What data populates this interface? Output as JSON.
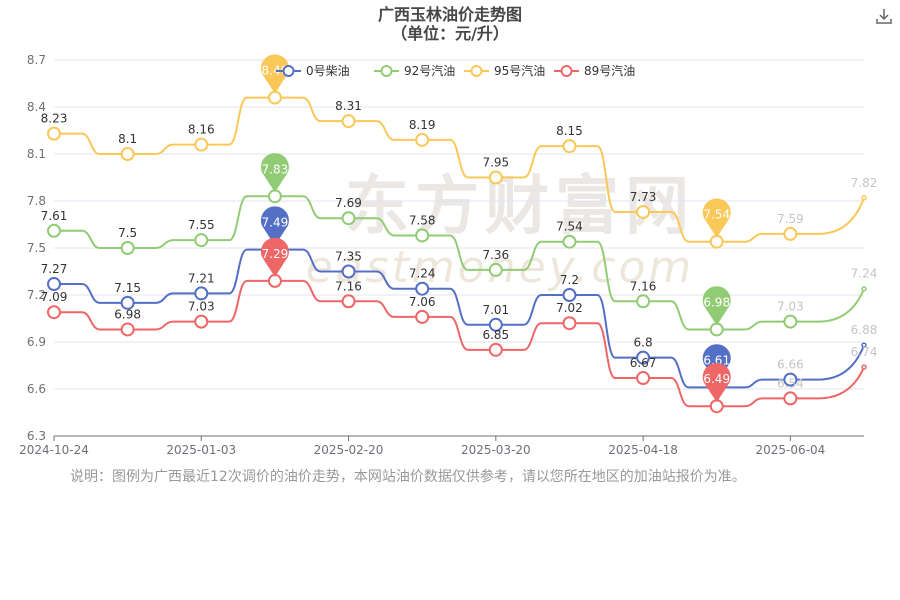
{
  "chart_data": {
    "type": "line",
    "title": "广西玉林油价走势图",
    "subtitle": "（单位：元/升）",
    "x": [
      "2024-10-24",
      "2024-11-21",
      "2025-01-03",
      "2025-01-17",
      "2025-02-20",
      "2025-03-06",
      "2025-03-20",
      "2025-04-03",
      "2025-04-18",
      "2025-05-07",
      "2025-06-04",
      "2025-06-20"
    ],
    "x_tick_labels": [
      "2024-10-24",
      "2025-01-03",
      "2025-02-20",
      "2025-03-20",
      "2025-04-18",
      "2025-06-04"
    ],
    "ylim": [
      6.3,
      8.7
    ],
    "y_ticks": [
      "6.3",
      "6.6",
      "6.9",
      "7.2",
      "7.5",
      "7.8",
      "8.1",
      "8.4",
      "8.7"
    ],
    "grid": true,
    "legend_position": "top",
    "series": [
      {
        "name": "0号柴油",
        "color": "#5470c6",
        "values": [
          7.27,
          7.15,
          7.21,
          7.49,
          7.35,
          7.24,
          7.01,
          7.2,
          6.8,
          6.61,
          6.66,
          6.88
        ],
        "max_label": "7.49",
        "min_label": "6.61"
      },
      {
        "name": "92号汽油",
        "color": "#91cc75",
        "values": [
          7.61,
          7.5,
          7.55,
          7.83,
          7.69,
          7.58,
          7.36,
          7.54,
          7.16,
          6.98,
          7.03,
          7.24
        ],
        "max_label": "7.83",
        "min_label": "6.98"
      },
      {
        "name": "95号汽油",
        "color": "#fac858",
        "values": [
          8.23,
          8.1,
          8.16,
          8.46,
          8.31,
          8.19,
          7.95,
          8.15,
          7.73,
          7.54,
          7.59,
          7.82
        ],
        "max_label": "8.46",
        "min_label": "7.54"
      },
      {
        "name": "89号汽油",
        "color": "#ee6666",
        "values": [
          7.09,
          6.98,
          7.03,
          7.29,
          7.16,
          7.06,
          6.85,
          7.02,
          6.67,
          6.49,
          6.54,
          6.74
        ],
        "max_label": "7.29",
        "min_label": "6.49"
      }
    ]
  },
  "watermark": {
    "cn": "东方财富网",
    "en": "eastmoney.com"
  },
  "note": "说明：图例为广西最近12次调价的油价走势，本网站油价数据仅供参考，请以您所在地区的加油站报价为准。",
  "toolbar": {
    "download_icon": "download-icon"
  }
}
